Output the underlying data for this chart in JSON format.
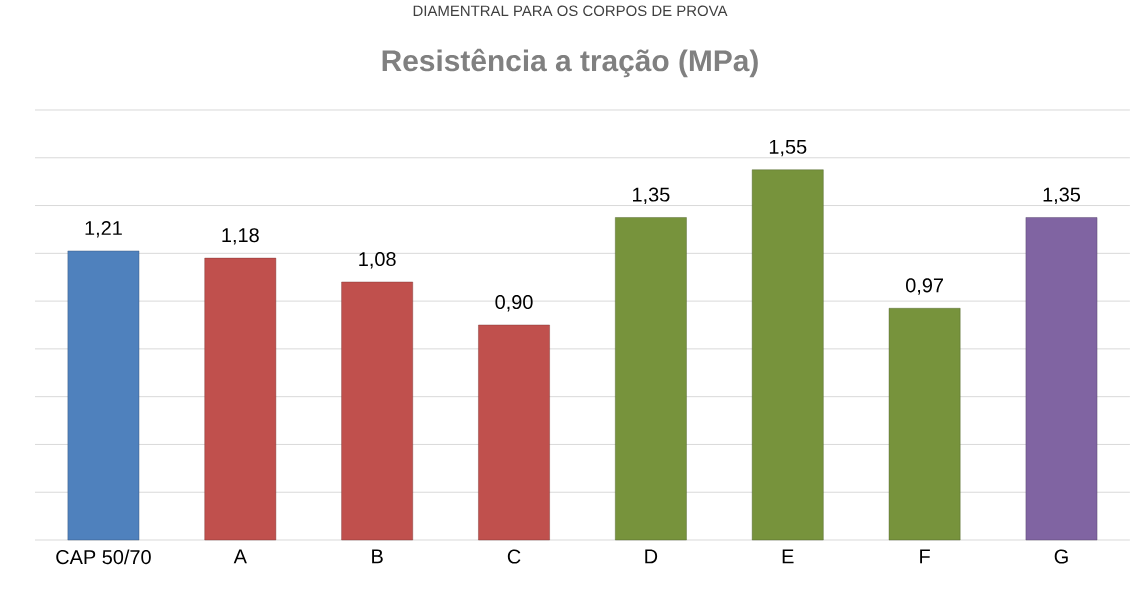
{
  "chart_data": {
    "type": "bar",
    "title": "Resistência a tração (MPa)",
    "annotations": [
      "DIAMENTRAL PARA OS CORPOS DE PROVA"
    ],
    "categories": [
      "CAP 50/70",
      "A",
      "B",
      "C",
      "D",
      "E",
      "F",
      "G"
    ],
    "values": [
      1.21,
      1.18,
      1.08,
      0.9,
      1.35,
      1.55,
      0.97,
      1.35
    ],
    "value_labels": [
      "1,21",
      "1,18",
      "1,08",
      "0,90",
      "1,35",
      "1,55",
      "0,97",
      "1,35"
    ],
    "colors": [
      "#4f81bd",
      "#c0504d",
      "#c0504d",
      "#c0504d",
      "#77933c",
      "#77933c",
      "#77933c",
      "#8064a2"
    ],
    "ylim": [
      0,
      1.8
    ],
    "yticks": [
      {
        "value": 0,
        "label": null
      },
      {
        "value": 0.2,
        "label": null
      },
      {
        "value": 0.4,
        "label": null
      },
      {
        "value": 0.6,
        "label": null
      },
      {
        "value": 0.8,
        "label": null
      },
      {
        "value": 1.0,
        "label": null
      },
      {
        "value": 1.2,
        "label": null
      },
      {
        "value": 1.4,
        "label": null
      },
      {
        "value": 1.6,
        "label": null
      },
      {
        "value": 1.8,
        "label": null
      }
    ],
    "grid": "y",
    "tick_labels": "x"
  }
}
